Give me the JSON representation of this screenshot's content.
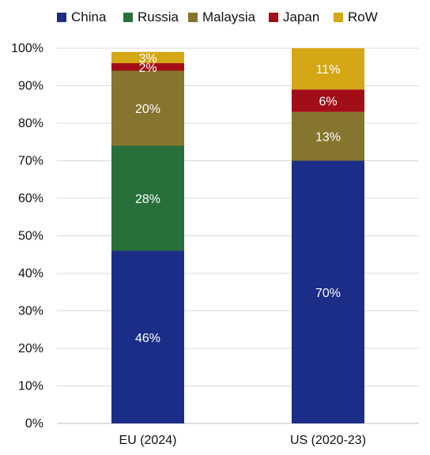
{
  "chart_data": {
    "type": "bar",
    "stacked": true,
    "categories": [
      "EU (2024)",
      "US (2020-23)"
    ],
    "series": [
      {
        "name": "China",
        "values": [
          46,
          70
        ],
        "labels": [
          "46%",
          "70%"
        ],
        "color": "#1b2d86"
      },
      {
        "name": "Russia",
        "values": [
          28,
          0
        ],
        "labels": [
          "28%",
          ""
        ],
        "color": "#27703c"
      },
      {
        "name": "Malaysia",
        "values": [
          20,
          13
        ],
        "labels": [
          "20%",
          "13%"
        ],
        "color": "#86752e"
      },
      {
        "name": "Japan",
        "values": [
          2,
          6
        ],
        "labels": [
          "2%",
          "6%"
        ],
        "color": "#a20e17"
      },
      {
        "name": "RoW",
        "values": [
          3,
          11
        ],
        "labels": [
          "3%",
          "11%"
        ],
        "color": "#d4a717"
      }
    ],
    "ylim": [
      0,
      100
    ],
    "yticks": [
      "0%",
      "10%",
      "20%",
      "30%",
      "40%",
      "50%",
      "60%",
      "70%",
      "80%",
      "90%",
      "100%"
    ],
    "grid": true,
    "legend_position": "top",
    "xlabel": "",
    "ylabel": ""
  }
}
